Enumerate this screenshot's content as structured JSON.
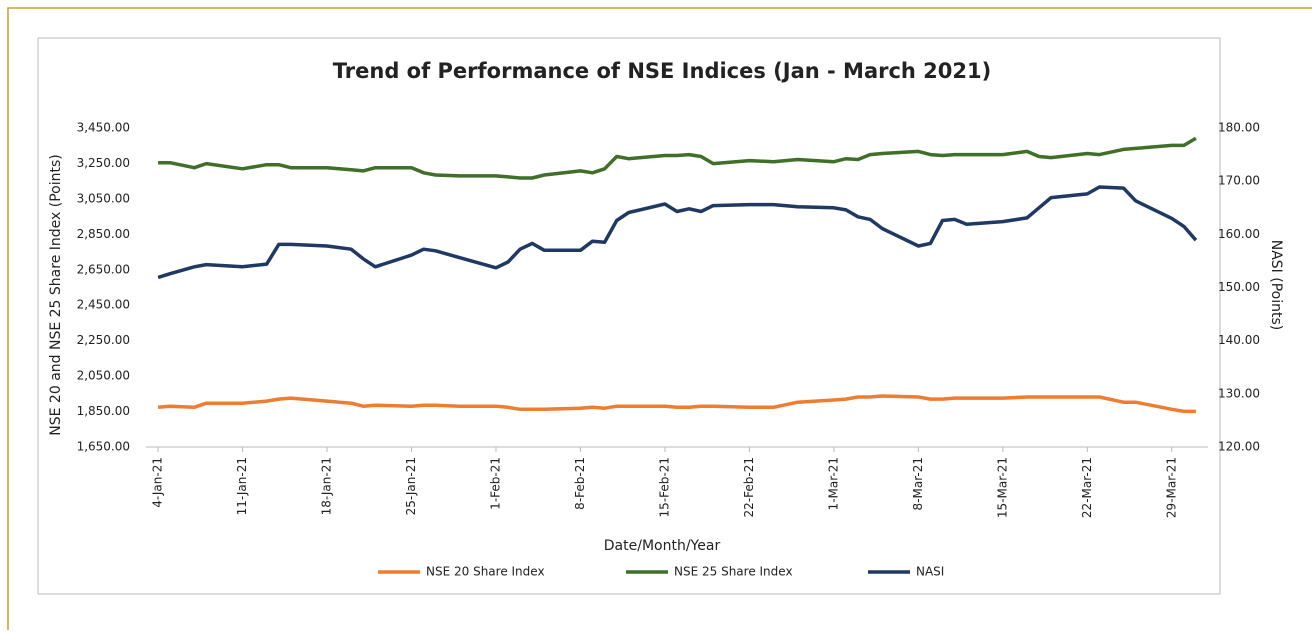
{
  "chart_data": {
    "type": "line",
    "title": "Trend of Performance of NSE Indices (Jan - March 2021)",
    "xlabel": "Date/Month/Year",
    "ylabel": "NSE 20 and NSE 25 Share Index (Points)",
    "y2label": "NASI (Points)",
    "x": [
      "4-Jan-21",
      "5-Jan-21",
      "7-Jan-21",
      "8-Jan-21",
      "11-Jan-21",
      "13-Jan-21",
      "14-Jan-21",
      "15-Jan-21",
      "18-Jan-21",
      "20-Jan-21",
      "21-Jan-21",
      "22-Jan-21",
      "25-Jan-21",
      "26-Jan-21",
      "27-Jan-21",
      "29-Jan-21",
      "1-Feb-21",
      "2-Feb-21",
      "3-Feb-21",
      "4-Feb-21",
      "5-Feb-21",
      "8-Feb-21",
      "9-Feb-21",
      "10-Feb-21",
      "11-Feb-21",
      "12-Feb-21",
      "15-Feb-21",
      "16-Feb-21",
      "17-Feb-21",
      "18-Feb-21",
      "19-Feb-21",
      "22-Feb-21",
      "24-Feb-21",
      "26-Feb-21",
      "1-Mar-21",
      "2-Mar-21",
      "3-Mar-21",
      "4-Mar-21",
      "5-Mar-21",
      "8-Mar-21",
      "9-Mar-21",
      "10-Mar-21",
      "11-Mar-21",
      "12-Mar-21",
      "15-Mar-21",
      "17-Mar-21",
      "18-Mar-21",
      "19-Mar-21",
      "22-Mar-21",
      "23-Mar-21",
      "25-Mar-21",
      "26-Mar-21",
      "29-Mar-21",
      "30-Mar-21",
      "31-Mar-21"
    ],
    "xlim": [
      "3-Jan-21",
      "1-Apr-21"
    ],
    "xticks": [
      "4-Jan-21",
      "11-Jan-21",
      "18-Jan-21",
      "25-Jan-21",
      "1-Feb-21",
      "8-Feb-21",
      "15-Feb-21",
      "22-Feb-21",
      "1-Mar-21",
      "8-Mar-21",
      "15-Mar-21",
      "22-Mar-21",
      "29-Mar-21"
    ],
    "ylim": [
      1650,
      3450
    ],
    "yticks": [
      {
        "value": 1650,
        "label": "1,650.00"
      },
      {
        "value": 1850,
        "label": "1,850.00"
      },
      {
        "value": 2050,
        "label": "2,050.00"
      },
      {
        "value": 2250,
        "label": "2,250.00"
      },
      {
        "value": 2450,
        "label": "2,450.00"
      },
      {
        "value": 2650,
        "label": "2,650.00"
      },
      {
        "value": 2850,
        "label": "2,850.00"
      },
      {
        "value": 3050,
        "label": "3,050.00"
      },
      {
        "value": 3250,
        "label": "3,250.00"
      },
      {
        "value": 3450,
        "label": "3,450.00"
      }
    ],
    "y2lim": [
      120,
      180
    ],
    "y2ticks": [
      {
        "value": 120,
        "label": "120.00"
      },
      {
        "value": 130,
        "label": "130.00"
      },
      {
        "value": 140,
        "label": "140.00"
      },
      {
        "value": 150,
        "label": "150.00"
      },
      {
        "value": 160,
        "label": "160.00"
      },
      {
        "value": 170,
        "label": "170.00"
      },
      {
        "value": 180,
        "label": "180.00"
      }
    ],
    "legend": "bottom",
    "series": [
      {
        "name": "NSE 20 Share Index",
        "color": "#ed7d31",
        "values": [
          1874,
          1880,
          1874,
          1897,
          1897,
          1909,
          1920,
          1926,
          1909,
          1897,
          1880,
          1886,
          1880,
          1886,
          1886,
          1880,
          1880,
          1874,
          1863,
          1863,
          1863,
          1869,
          1874,
          1869,
          1880,
          1880,
          1880,
          1874,
          1874,
          1880,
          1880,
          1874,
          1874,
          1903,
          1915,
          1920,
          1932,
          1932,
          1938,
          1932,
          1920,
          1920,
          1926,
          1926,
          1926,
          1932,
          1932,
          1932,
          1932,
          1932,
          1903,
          1903,
          1863,
          1851,
          1851
        ]
      },
      {
        "name": "NSE 25 Share Index",
        "color": "#3f6f28",
        "values": [
          3254,
          3254,
          3226,
          3249,
          3220,
          3243,
          3243,
          3226,
          3226,
          3214,
          3208,
          3226,
          3226,
          3197,
          3185,
          3180,
          3180,
          3174,
          3168,
          3168,
          3185,
          3208,
          3197,
          3220,
          3289,
          3277,
          3295,
          3295,
          3300,
          3289,
          3249,
          3266,
          3260,
          3272,
          3260,
          3277,
          3272,
          3300,
          3306,
          3318,
          3300,
          3295,
          3300,
          3300,
          3300,
          3318,
          3289,
          3283,
          3306,
          3300,
          3329,
          3335,
          3352,
          3352,
          3392
        ]
      },
      {
        "name": "NASI",
        "color": "#1f3864",
        "axis": "y2",
        "values": [
          151.9,
          152.6,
          153.9,
          154.3,
          153.9,
          154.4,
          158.1,
          158.1,
          157.8,
          157.2,
          155.4,
          153.9,
          156.1,
          157.2,
          156.9,
          155.6,
          153.7,
          154.8,
          157.2,
          158.3,
          157.0,
          157.0,
          158.7,
          158.5,
          162.6,
          164.1,
          165.7,
          164.3,
          164.8,
          164.3,
          165.4,
          165.6,
          165.6,
          165.2,
          165.0,
          164.6,
          163.3,
          162.8,
          161.1,
          157.8,
          158.3,
          162.6,
          162.8,
          161.9,
          162.4,
          163.1,
          165.0,
          166.9,
          167.6,
          168.9,
          168.7,
          166.3,
          163.0,
          161.5,
          158.9
        ]
      }
    ]
  }
}
